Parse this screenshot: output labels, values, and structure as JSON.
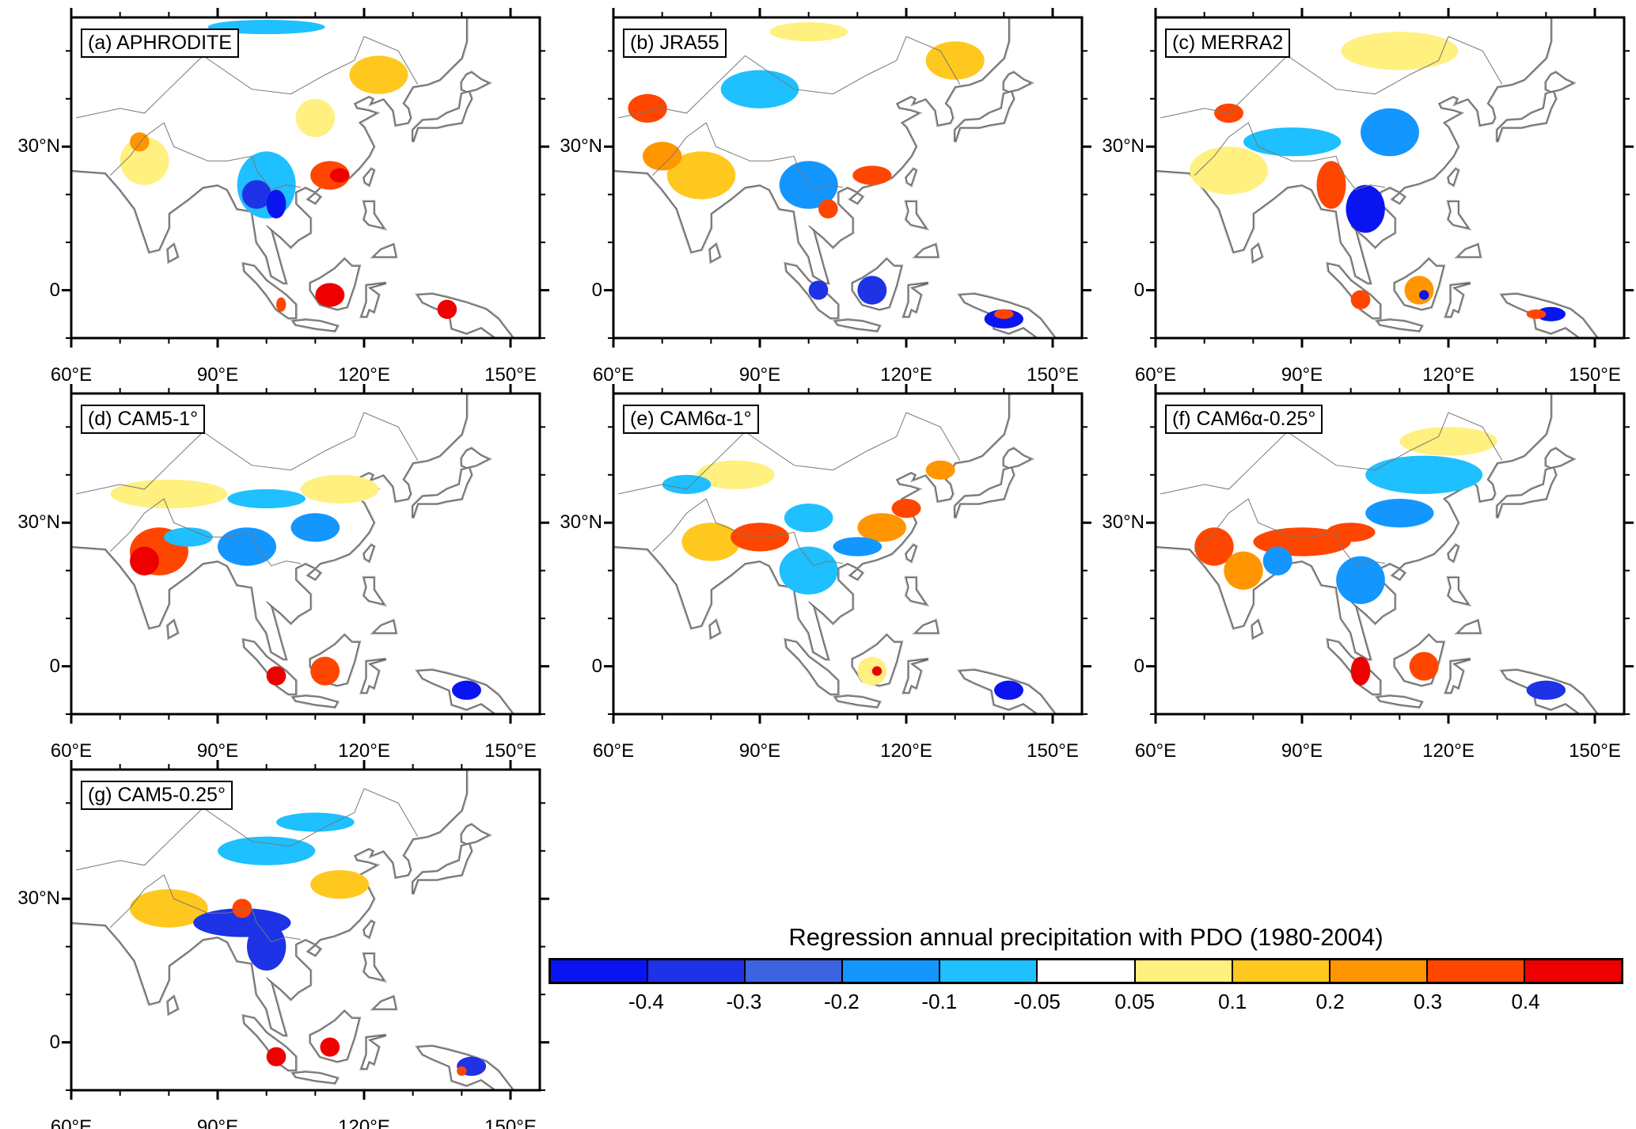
{
  "chart_data": {
    "type": "heatmap",
    "title": "Regression annual precipitation with PDO (1980-2004)",
    "panels": [
      {
        "label": "(a) APHRODITE"
      },
      {
        "label": "(b) JRA55"
      },
      {
        "label": "(c) MERRA2"
      },
      {
        "label": "(d) CAM5-1°"
      },
      {
        "label": "(e) CAM6α-1°"
      },
      {
        "label": "(f) CAM6α-0.25°"
      },
      {
        "label": "(g) CAM5-0.25°"
      }
    ],
    "x_range": [
      60,
      156
    ],
    "y_range": [
      -10,
      57
    ],
    "x_ticks": [
      "60°E",
      "90°E",
      "120°E",
      "150°E"
    ],
    "x_tick_values": [
      60,
      90,
      120,
      150
    ],
    "y_ticks": [
      "30°N",
      "0"
    ],
    "y_tick_values": [
      30,
      0
    ],
    "colorbar": {
      "labels": [
        "-0.4",
        "-0.3",
        "-0.2",
        "-0.1",
        "-0.05",
        "0.05",
        "0.1",
        "0.2",
        "0.3",
        "0.4"
      ],
      "colors": [
        "#0a14f0",
        "#1e32e6",
        "#3c64e0",
        "#1496ff",
        "#1ec0ff",
        "#ffffff",
        "#fff080",
        "#ffc81e",
        "#ff9600",
        "#ff4600",
        "#ee0000"
      ]
    }
  }
}
